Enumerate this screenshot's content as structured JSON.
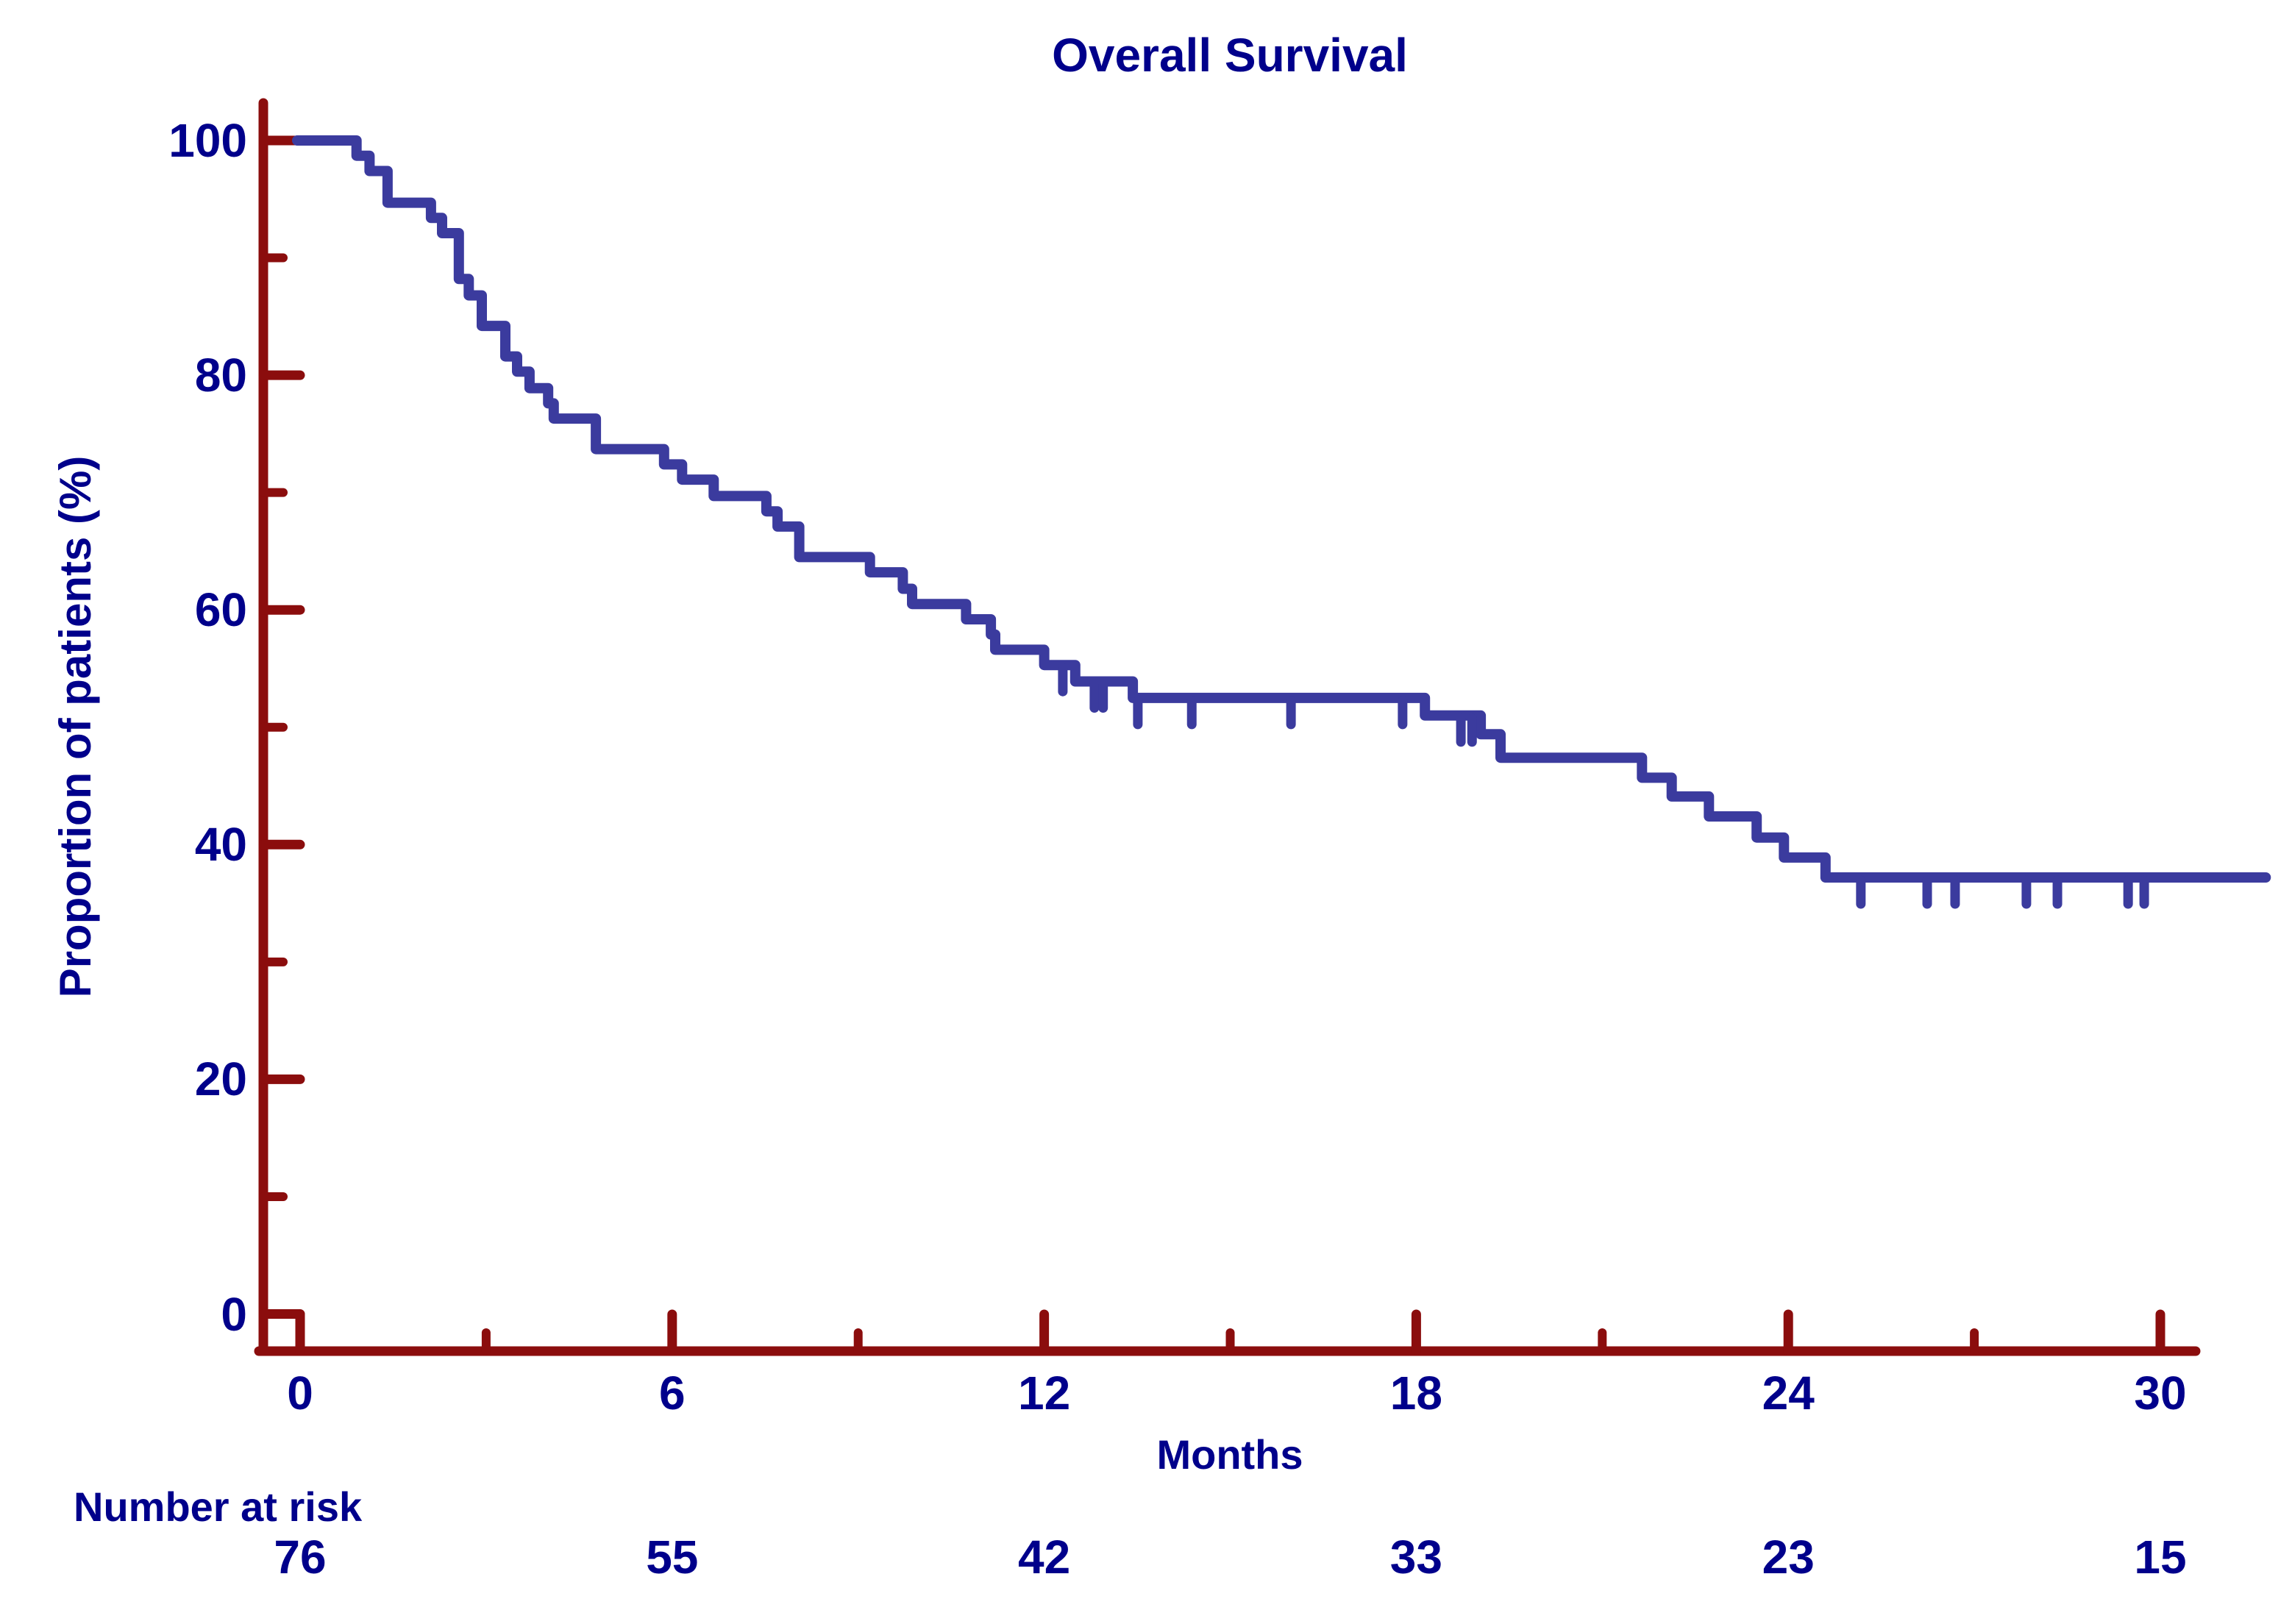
{
  "title": "Overall Survival",
  "y_axis": {
    "label": "Proportion of patients (%)"
  },
  "x_axis": {
    "label": "Months"
  },
  "risk_table": {
    "label": "Number at risk",
    "values": [
      "76",
      "55",
      "42",
      "33",
      "23",
      "15"
    ]
  },
  "colors": {
    "curve": "#3B3B9E",
    "axis": "#8B0D0D",
    "text": "#00008B",
    "background": "#FFFFFF"
  },
  "chart_data": {
    "type": "line",
    "subtype": "kaplan-meier-step-curve",
    "title": "Overall Survival",
    "xlabel": "Months",
    "ylabel": "Proportion of patients (%)",
    "xlim": [
      0,
      31.7
    ],
    "ylim": [
      0,
      100
    ],
    "grid": false,
    "legend": "none",
    "x_ticks_major": [
      0,
      6,
      12,
      18,
      24,
      30
    ],
    "x_ticks_minor": [
      3,
      9,
      15,
      21,
      27
    ],
    "y_ticks_major": [
      0,
      20,
      40,
      60,
      80,
      100
    ],
    "y_ticks_minor": [
      10,
      30,
      50,
      70,
      90
    ],
    "survival_steps": [
      [
        0,
        100
      ],
      [
        0.91,
        98.7
      ],
      [
        1.12,
        97.4
      ],
      [
        1.41,
        94.7
      ],
      [
        2.11,
        93.4
      ],
      [
        2.29,
        92.1
      ],
      [
        2.56,
        88.2
      ],
      [
        2.72,
        86.8
      ],
      [
        2.93,
        84.2
      ],
      [
        3.31,
        81.6
      ],
      [
        3.5,
        80.3
      ],
      [
        3.7,
        78.9
      ],
      [
        4.0,
        77.6
      ],
      [
        4.09,
        76.3
      ],
      [
        4.77,
        73.7
      ],
      [
        5.87,
        72.4
      ],
      [
        6.16,
        71.1
      ],
      [
        6.67,
        69.7
      ],
      [
        7.52,
        68.4
      ],
      [
        7.7,
        67.1
      ],
      [
        8.05,
        64.5
      ],
      [
        9.19,
        63.2
      ],
      [
        9.72,
        61.8
      ],
      [
        9.87,
        60.5
      ],
      [
        10.74,
        59.2
      ],
      [
        11.14,
        57.9
      ],
      [
        11.21,
        56.6
      ],
      [
        12.0,
        55.3
      ],
      [
        12.5,
        53.9
      ],
      [
        13.43,
        52.5
      ],
      [
        18.14,
        51.0
      ],
      [
        19.04,
        49.4
      ],
      [
        19.36,
        47.4
      ],
      [
        21.64,
        45.7
      ],
      [
        22.12,
        44.1
      ],
      [
        22.72,
        42.4
      ],
      [
        23.49,
        40.6
      ],
      [
        23.93,
        38.9
      ],
      [
        24.6,
        37.2
      ]
    ],
    "curve_end_month": 31.7,
    "censor_marks": [
      [
        12.3,
        55.3
      ],
      [
        12.81,
        53.9
      ],
      [
        12.95,
        53.9
      ],
      [
        13.51,
        52.5
      ],
      [
        14.38,
        52.5
      ],
      [
        15.98,
        52.5
      ],
      [
        17.78,
        52.5
      ],
      [
        18.72,
        51.0
      ],
      [
        18.9,
        51.0
      ],
      [
        25.17,
        37.2
      ],
      [
        26.24,
        37.2
      ],
      [
        26.69,
        37.2
      ],
      [
        27.84,
        37.2
      ],
      [
        28.34,
        37.2
      ],
      [
        29.48,
        37.2
      ],
      [
        29.74,
        37.2
      ]
    ],
    "number_at_risk": {
      "months": [
        0,
        6,
        12,
        18,
        24,
        30
      ],
      "values": [
        76,
        55,
        42,
        33,
        23,
        15
      ]
    }
  }
}
